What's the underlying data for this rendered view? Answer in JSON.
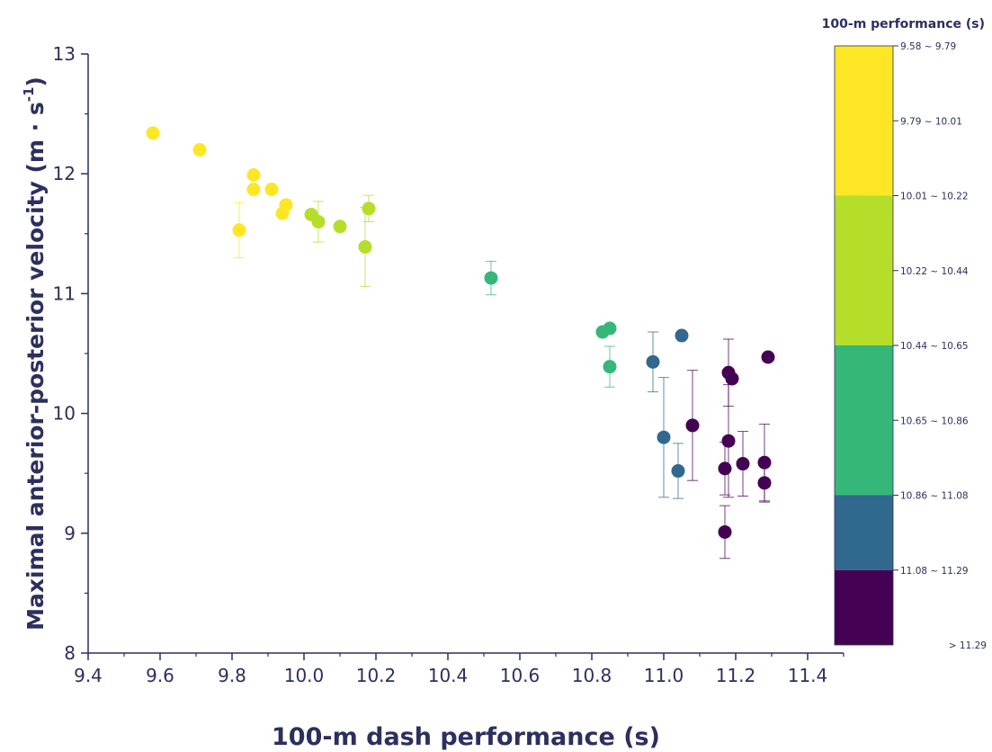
{
  "chart_data": {
    "type": "scatter",
    "xlabel": "100-m dash performance (s)",
    "ylabel_main": "Maximal anterior-posterior velocity (m · s",
    "ylabel_sup": "-1",
    "ylabel_close": ")",
    "xlim": [
      9.4,
      11.5
    ],
    "ylim": [
      8,
      13
    ],
    "x_ticks": [
      "9.4",
      "9.6",
      "9.8",
      "10.0",
      "10.2",
      "10.4",
      "10.6",
      "10.8",
      "11.0",
      "11.2",
      "11.4"
    ],
    "y_ticks": [
      "8",
      "9",
      "10",
      "11",
      "12",
      "13"
    ],
    "grid": false,
    "legend_placement": "right colorbar",
    "colorbar": {
      "title": "100-m performance (s)",
      "bands": [
        {
          "label": "9.58   ~ 9.79",
          "color": "#FDE725"
        },
        {
          "label": "9.79   ~ 10.01",
          "color": "#FDE725"
        },
        {
          "label": "10.01 ~ 10.22",
          "color": "#B5DE2B"
        },
        {
          "label": "10.22 ~ 10.44",
          "color": "#B5DE2B"
        },
        {
          "label": "10.44 ~ 10.65",
          "color": "#35B779"
        },
        {
          "label": "10.65 ~ 10.86",
          "color": "#35B779"
        },
        {
          "label": "10.86 ~ 11.08",
          "color": "#31688E"
        },
        {
          "label": "11.08 ~ 11.29",
          "color": "#440154"
        },
        {
          "label": "> 11.29",
          "color": "#440154"
        }
      ]
    },
    "points": [
      {
        "x": 9.58,
        "y": 12.34,
        "color": "#FDE725"
      },
      {
        "x": 9.71,
        "y": 12.2,
        "color": "#FDE725"
      },
      {
        "x": 9.82,
        "y": 11.53,
        "err": 0.23,
        "color": "#FDE725"
      },
      {
        "x": 9.86,
        "y": 11.99,
        "color": "#FDE725"
      },
      {
        "x": 9.86,
        "y": 11.87,
        "color": "#FDE725"
      },
      {
        "x": 9.91,
        "y": 11.87,
        "color": "#FDE725"
      },
      {
        "x": 9.94,
        "y": 11.67,
        "color": "#FDE725"
      },
      {
        "x": 9.95,
        "y": 11.74,
        "color": "#FDE725"
      },
      {
        "x": 10.02,
        "y": 11.66,
        "color": "#B5DE2B"
      },
      {
        "x": 10.04,
        "y": 11.6,
        "err": 0.17,
        "color": "#B5DE2B"
      },
      {
        "x": 10.1,
        "y": 11.56,
        "color": "#B5DE2B"
      },
      {
        "x": 10.17,
        "y": 11.39,
        "err": 0.33,
        "color": "#B5DE2B"
      },
      {
        "x": 10.18,
        "y": 11.71,
        "err": 0.11,
        "color": "#B5DE2B"
      },
      {
        "x": 10.52,
        "y": 11.13,
        "err": 0.14,
        "color": "#35B779"
      },
      {
        "x": 10.83,
        "y": 10.68,
        "color": "#35B779"
      },
      {
        "x": 10.85,
        "y": 10.71,
        "color": "#35B779"
      },
      {
        "x": 10.85,
        "y": 10.39,
        "err": 0.17,
        "color": "#35B779"
      },
      {
        "x": 10.97,
        "y": 10.43,
        "err": 0.25,
        "color": "#31688E"
      },
      {
        "x": 11.0,
        "y": 9.8,
        "err": 0.5,
        "color": "#31688E"
      },
      {
        "x": 11.04,
        "y": 9.52,
        "err": 0.23,
        "color": "#31688E"
      },
      {
        "x": 11.05,
        "y": 10.65,
        "color": "#31688E"
      },
      {
        "x": 11.08,
        "y": 9.9,
        "err": 0.46,
        "color": "#440154"
      },
      {
        "x": 11.17,
        "y": 9.54,
        "err": 0.22,
        "color": "#440154"
      },
      {
        "x": 11.17,
        "y": 9.01,
        "err": 0.22,
        "color": "#440154"
      },
      {
        "x": 11.18,
        "y": 10.34,
        "err": 0.28,
        "color": "#440154"
      },
      {
        "x": 11.18,
        "y": 9.77,
        "err": 0.47,
        "color": "#440154"
      },
      {
        "x": 11.19,
        "y": 10.29,
        "color": "#440154"
      },
      {
        "x": 11.22,
        "y": 9.58,
        "err": 0.27,
        "color": "#440154"
      },
      {
        "x": 11.28,
        "y": 9.59,
        "err": 0.32,
        "color": "#440154"
      },
      {
        "x": 11.28,
        "y": 9.42,
        "err": 0.16,
        "color": "#440154"
      },
      {
        "x": 11.29,
        "y": 10.47,
        "color": "#440154"
      }
    ]
  }
}
